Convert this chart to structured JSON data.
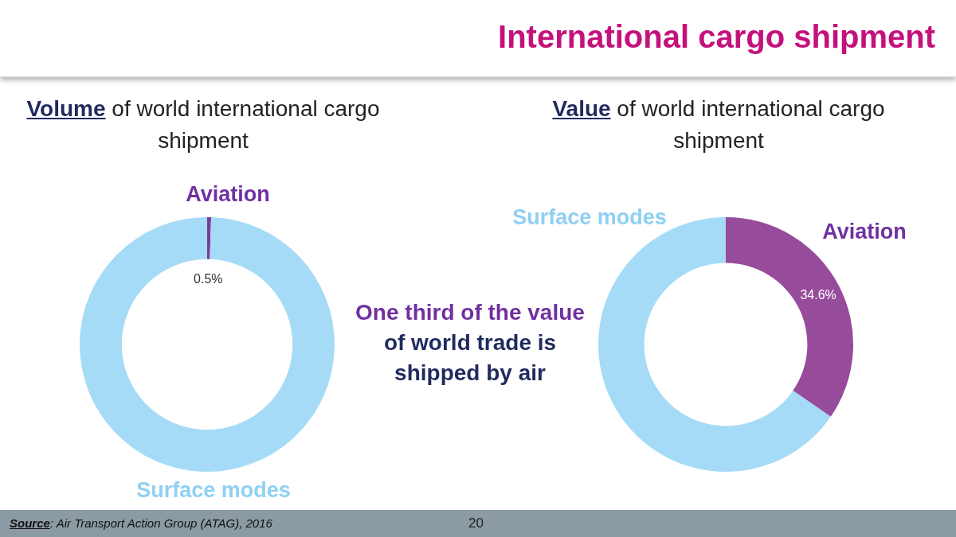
{
  "chart_data": [
    {
      "type": "donut",
      "title": "Volume of world international cargo shipment",
      "categories": [
        "Aviation",
        "Surface modes"
      ],
      "values": [
        0.5,
        99.5
      ],
      "colors": [
        "#7b3a96",
        "#a5dbf7"
      ],
      "value_labels": [
        "0.5%",
        null
      ]
    },
    {
      "type": "donut",
      "title": "Value of world international cargo shipment",
      "categories": [
        "Aviation",
        "Surface modes"
      ],
      "values": [
        34.6,
        65.4
      ],
      "colors": [
        "#964b9b",
        "#a5dbf7"
      ],
      "value_labels": [
        "34.6%",
        null
      ]
    },
    {
      "type": "other",
      "title": "International cargo shipment",
      "annotations": [
        "One third of the value",
        "of world trade is shipped by air",
        "Source: Air Transport Action Group (ATAG), 2016",
        "20"
      ]
    }
  ]
}
